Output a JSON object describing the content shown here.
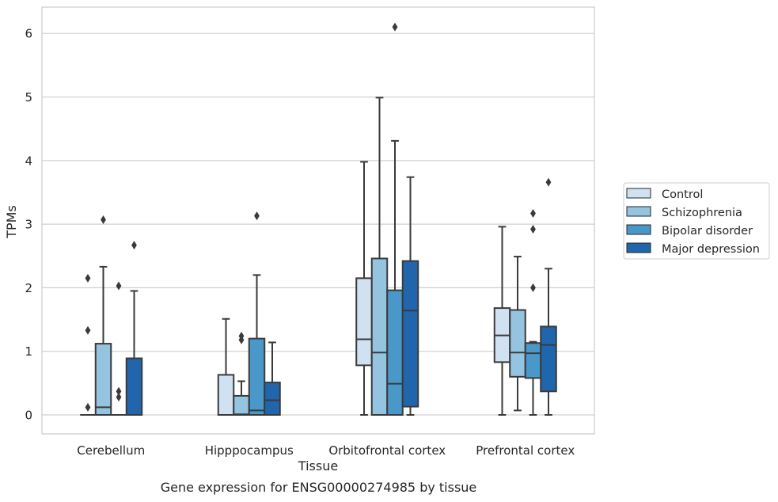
{
  "chart_data": {
    "type": "boxplot",
    "xlabel": "Tissue",
    "ylabel": "TPMs",
    "caption": "Gene expression for ENSG00000274985 by tissue",
    "ylim": [
      -0.3,
      6.4
    ],
    "yticks": [
      0,
      1,
      2,
      3,
      4,
      5,
      6
    ],
    "grid": "horizontal",
    "legend_position": "right",
    "categories": [
      "Cerebellum",
      "Hipppocampus",
      "Orbitofrontal cortex",
      "Prefrontal cortex"
    ],
    "series": [
      {
        "name": "Control",
        "color": "#d0e1f2",
        "boxes": [
          {
            "min": 0,
            "q1": 0,
            "median": 0,
            "q3": 0,
            "max": 0,
            "outliers": [
              0.12,
              1.33,
              2.15
            ]
          },
          {
            "min": 0,
            "q1": 0,
            "median": 0,
            "q3": 0.63,
            "max": 1.51,
            "outliers": []
          },
          {
            "min": 0,
            "q1": 0.78,
            "median": 1.19,
            "q3": 2.15,
            "max": 3.98,
            "outliers": []
          },
          {
            "min": 0,
            "q1": 0.83,
            "median": 1.25,
            "q3": 1.68,
            "max": 2.96,
            "outliers": []
          }
        ]
      },
      {
        "name": "Schizophrenia",
        "color": "#94c4df",
        "boxes": [
          {
            "min": 0,
            "q1": 0,
            "median": 0.12,
            "q3": 1.12,
            "max": 2.33,
            "outliers": [
              3.07
            ]
          },
          {
            "min": 0,
            "q1": 0,
            "median": 0.01,
            "q3": 0.3,
            "max": 0.53,
            "outliers": [
              1.18,
              1.24
            ]
          },
          {
            "min": 0,
            "q1": 0,
            "median": 0.98,
            "q3": 2.46,
            "max": 4.99,
            "outliers": []
          },
          {
            "min": 0.07,
            "q1": 0.6,
            "median": 0.98,
            "q3": 1.65,
            "max": 2.49,
            "outliers": []
          }
        ]
      },
      {
        "name": "Bipolar disorder",
        "color": "#4a98c9",
        "boxes": [
          {
            "min": 0,
            "q1": 0,
            "median": 0,
            "q3": 0,
            "max": 0,
            "outliers": [
              0.28,
              0.37,
              2.03
            ]
          },
          {
            "min": 0,
            "q1": 0,
            "median": 0.07,
            "q3": 1.2,
            "max": 2.2,
            "outliers": [
              3.13
            ]
          },
          {
            "min": 0,
            "q1": 0,
            "median": 0.49,
            "q3": 1.96,
            "max": 4.31,
            "outliers": [
              6.1
            ]
          },
          {
            "min": 0,
            "q1": 0.58,
            "median": 0.97,
            "q3": 1.13,
            "max": 1.15,
            "outliers": [
              2.0,
              2.92,
              3.17
            ]
          }
        ]
      },
      {
        "name": "Major depression",
        "color": "#2166ac",
        "boxes": [
          {
            "min": 0,
            "q1": 0,
            "median": 0,
            "q3": 0.89,
            "max": 1.95,
            "outliers": [
              2.67
            ]
          },
          {
            "min": 0,
            "q1": 0,
            "median": 0.23,
            "q3": 0.51,
            "max": 1.14,
            "outliers": []
          },
          {
            "min": 0,
            "q1": 0.13,
            "median": 1.64,
            "q3": 2.42,
            "max": 3.74,
            "outliers": []
          },
          {
            "min": 0,
            "q1": 0.37,
            "median": 1.1,
            "q3": 1.39,
            "max": 2.3,
            "outliers": [
              3.66
            ]
          }
        ]
      }
    ]
  }
}
